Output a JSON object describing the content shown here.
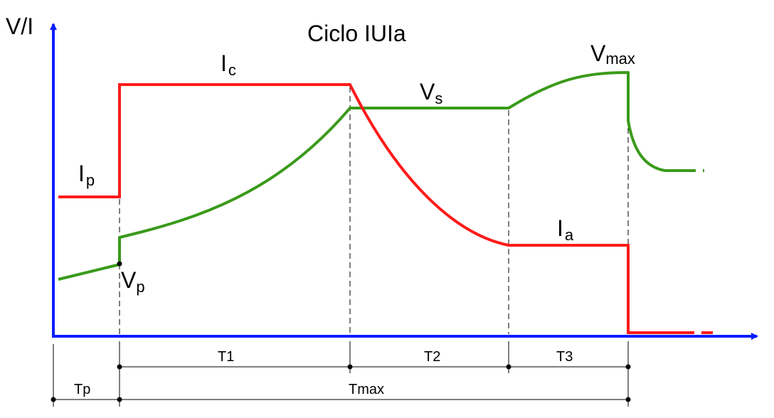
{
  "title": "Ciclo IUIa",
  "y_axis_label": "V/I",
  "colors": {
    "axis": "#0a1eff",
    "current": "#ff1a1a",
    "voltage": "#3a9a1a",
    "guide": "#000000"
  },
  "current_labels": {
    "ip": {
      "main": "I",
      "sub": "p"
    },
    "ic": {
      "main": "I",
      "sub": "c"
    },
    "ia": {
      "main": "I",
      "sub": "a"
    }
  },
  "voltage_labels": {
    "vp": {
      "main": "V",
      "sub": "p"
    },
    "vs": {
      "main": "V",
      "sub": "s"
    },
    "vmax": {
      "main": "V",
      "sub": "max"
    }
  },
  "phases": {
    "t1": "T1",
    "t2": "T2",
    "t3": "T3",
    "tp": "Tp",
    "tmax": "Tmax"
  }
}
